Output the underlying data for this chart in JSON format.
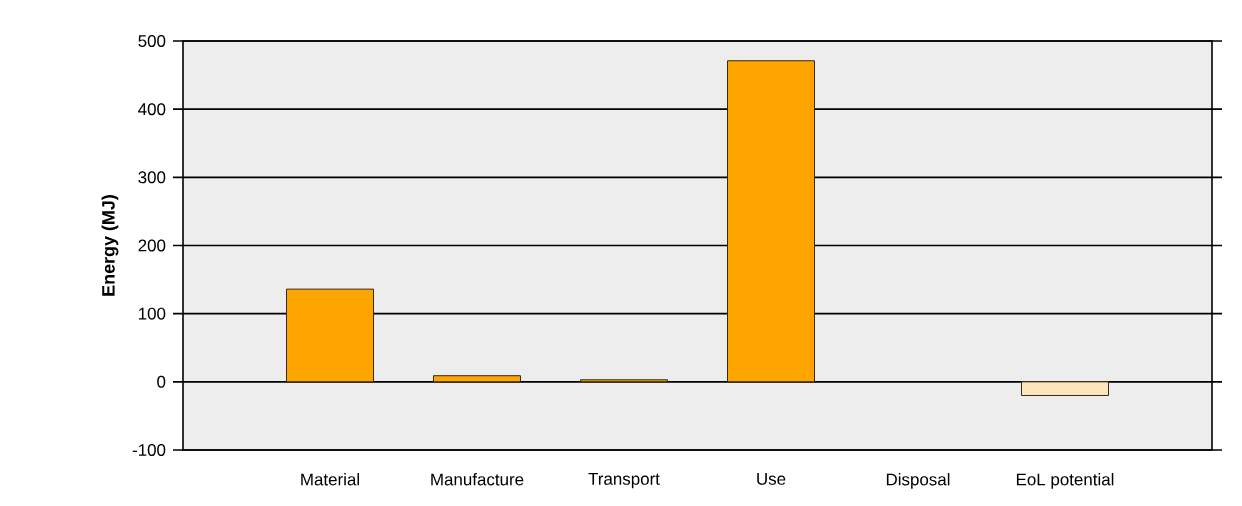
{
  "chart_data": {
    "type": "bar",
    "ylabel": "Energy (MJ)",
    "categories": [
      "Material",
      "Manufacture",
      "Transport",
      "Use",
      "Disposal",
      "EoL potential"
    ],
    "values": [
      136,
      9,
      3,
      471,
      0,
      -20
    ],
    "colors": [
      "#ffa500",
      "#ffa500",
      "#ffa500",
      "#ffa500",
      "#ffa500",
      "#fde5bd"
    ],
    "ylim": [
      -100,
      500
    ],
    "yticks": [
      -100,
      0,
      100,
      200,
      300,
      400,
      500
    ],
    "grid": "y"
  }
}
